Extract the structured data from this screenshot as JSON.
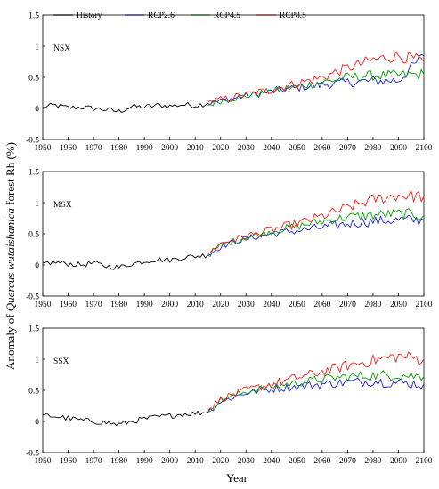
{
  "figure": {
    "ylabel_parts": [
      "Anomaly of ",
      "Quercus wutaishanica",
      " forest Rh (%)"
    ],
    "xlabel": "Year"
  },
  "legend": [
    {
      "label": "History",
      "color": "#000000"
    },
    {
      "label": "RCP2.6",
      "color": "#1f1fe0"
    },
    {
      "label": "RCP4.5",
      "color": "#00a000"
    },
    {
      "label": "RCP8.5",
      "color": "#ff1a1a"
    }
  ],
  "chart_data": [
    {
      "type": "line",
      "panel_label": "NSX",
      "xlim": [
        1950,
        2100
      ],
      "ylim": [
        -0.5,
        1.5
      ],
      "xticks": [
        1950,
        1960,
        1970,
        1980,
        1990,
        2000,
        2010,
        2020,
        2030,
        2040,
        2050,
        2060,
        2070,
        2080,
        2090,
        2100
      ],
      "yticks": [
        -0.5,
        0,
        0.5,
        1,
        1.5
      ],
      "series": [
        {
          "name": "History",
          "x": [
            1950,
            1955,
            1960,
            1965,
            1970,
            1975,
            1980,
            1985,
            1990,
            1995,
            2000,
            2005,
            2010,
            2015
          ],
          "y": [
            0.02,
            0.05,
            0.01,
            0.02,
            0.0,
            -0.02,
            -0.05,
            0.03,
            0.02,
            0.05,
            0.04,
            0.06,
            0.05,
            0.08
          ]
        },
        {
          "name": "RCP2.6",
          "x": [
            2015,
            2020,
            2030,
            2040,
            2050,
            2060,
            2070,
            2080,
            2090,
            2100
          ],
          "y": [
            0.08,
            0.12,
            0.2,
            0.27,
            0.33,
            0.38,
            0.42,
            0.44,
            0.45,
            0.85
          ]
        },
        {
          "name": "RCP4.5",
          "x": [
            2015,
            2020,
            2030,
            2040,
            2050,
            2060,
            2070,
            2080,
            2090,
            2100
          ],
          "y": [
            0.05,
            0.12,
            0.2,
            0.28,
            0.35,
            0.42,
            0.5,
            0.53,
            0.53,
            0.55
          ]
        },
        {
          "name": "RCP8.5",
          "x": [
            2015,
            2020,
            2030,
            2040,
            2050,
            2060,
            2070,
            2080,
            2090,
            2100
          ],
          "y": [
            0.1,
            0.14,
            0.22,
            0.3,
            0.4,
            0.5,
            0.65,
            0.78,
            0.85,
            0.75
          ]
        }
      ]
    },
    {
      "type": "line",
      "panel_label": "MSX",
      "xlim": [
        1950,
        2100
      ],
      "ylim": [
        -0.5,
        1.5
      ],
      "xticks": [
        1950,
        1960,
        1970,
        1980,
        1990,
        2000,
        2010,
        2020,
        2030,
        2040,
        2050,
        2060,
        2070,
        2080,
        2090,
        2100
      ],
      "yticks": [
        -0.5,
        0,
        0.5,
        1,
        1.5
      ],
      "series": [
        {
          "name": "History",
          "x": [
            1950,
            1955,
            1960,
            1965,
            1970,
            1975,
            1980,
            1985,
            1990,
            1995,
            2000,
            2005,
            2010,
            2015
          ],
          "y": [
            0.03,
            0.04,
            0.02,
            0.0,
            0.03,
            -0.02,
            -0.04,
            0.02,
            0.06,
            0.09,
            0.08,
            0.12,
            0.14,
            0.16
          ]
        },
        {
          "name": "RCP2.6",
          "x": [
            2015,
            2020,
            2030,
            2040,
            2050,
            2060,
            2070,
            2080,
            2090,
            2100
          ],
          "y": [
            0.15,
            0.3,
            0.42,
            0.5,
            0.55,
            0.6,
            0.66,
            0.7,
            0.72,
            0.72
          ]
        },
        {
          "name": "RCP4.5",
          "x": [
            2015,
            2020,
            2030,
            2040,
            2050,
            2060,
            2070,
            2080,
            2090,
            2100
          ],
          "y": [
            0.15,
            0.32,
            0.44,
            0.54,
            0.62,
            0.7,
            0.77,
            0.8,
            0.82,
            0.8
          ]
        },
        {
          "name": "RCP8.5",
          "x": [
            2015,
            2020,
            2030,
            2040,
            2050,
            2060,
            2070,
            2080,
            2090,
            2100
          ],
          "y": [
            0.18,
            0.34,
            0.46,
            0.56,
            0.66,
            0.78,
            0.92,
            1.05,
            1.12,
            1.1
          ]
        }
      ]
    },
    {
      "type": "line",
      "panel_label": "SSX",
      "xlim": [
        1950,
        2100
      ],
      "ylim": [
        -0.5,
        1.5
      ],
      "xticks": [
        1950,
        1960,
        1970,
        1980,
        1990,
        2000,
        2010,
        2020,
        2030,
        2040,
        2050,
        2060,
        2070,
        2080,
        2090,
        2100
      ],
      "yticks": [
        -0.5,
        0,
        0.5,
        1,
        1.5
      ],
      "series": [
        {
          "name": "History",
          "x": [
            1950,
            1955,
            1960,
            1965,
            1970,
            1975,
            1980,
            1985,
            1990,
            1995,
            2000,
            2005,
            2010,
            2015
          ],
          "y": [
            0.1,
            0.08,
            0.05,
            0.02,
            0.0,
            -0.02,
            -0.05,
            0.0,
            0.04,
            0.07,
            0.09,
            0.12,
            0.13,
            0.15
          ]
        },
        {
          "name": "RCP2.6",
          "x": [
            2015,
            2020,
            2030,
            2040,
            2050,
            2060,
            2070,
            2080,
            2090,
            2100
          ],
          "y": [
            0.15,
            0.32,
            0.46,
            0.52,
            0.56,
            0.6,
            0.63,
            0.65,
            0.62,
            0.6
          ]
        },
        {
          "name": "RCP4.5",
          "x": [
            2015,
            2020,
            2030,
            2040,
            2050,
            2060,
            2070,
            2080,
            2090,
            2100
          ],
          "y": [
            0.15,
            0.34,
            0.48,
            0.56,
            0.62,
            0.68,
            0.72,
            0.74,
            0.75,
            0.72
          ]
        },
        {
          "name": "RCP8.5",
          "x": [
            2015,
            2020,
            2030,
            2040,
            2050,
            2060,
            2070,
            2080,
            2090,
            2100
          ],
          "y": [
            0.18,
            0.36,
            0.5,
            0.6,
            0.7,
            0.8,
            0.9,
            0.98,
            1.05,
            1.0
          ]
        }
      ]
    }
  ]
}
